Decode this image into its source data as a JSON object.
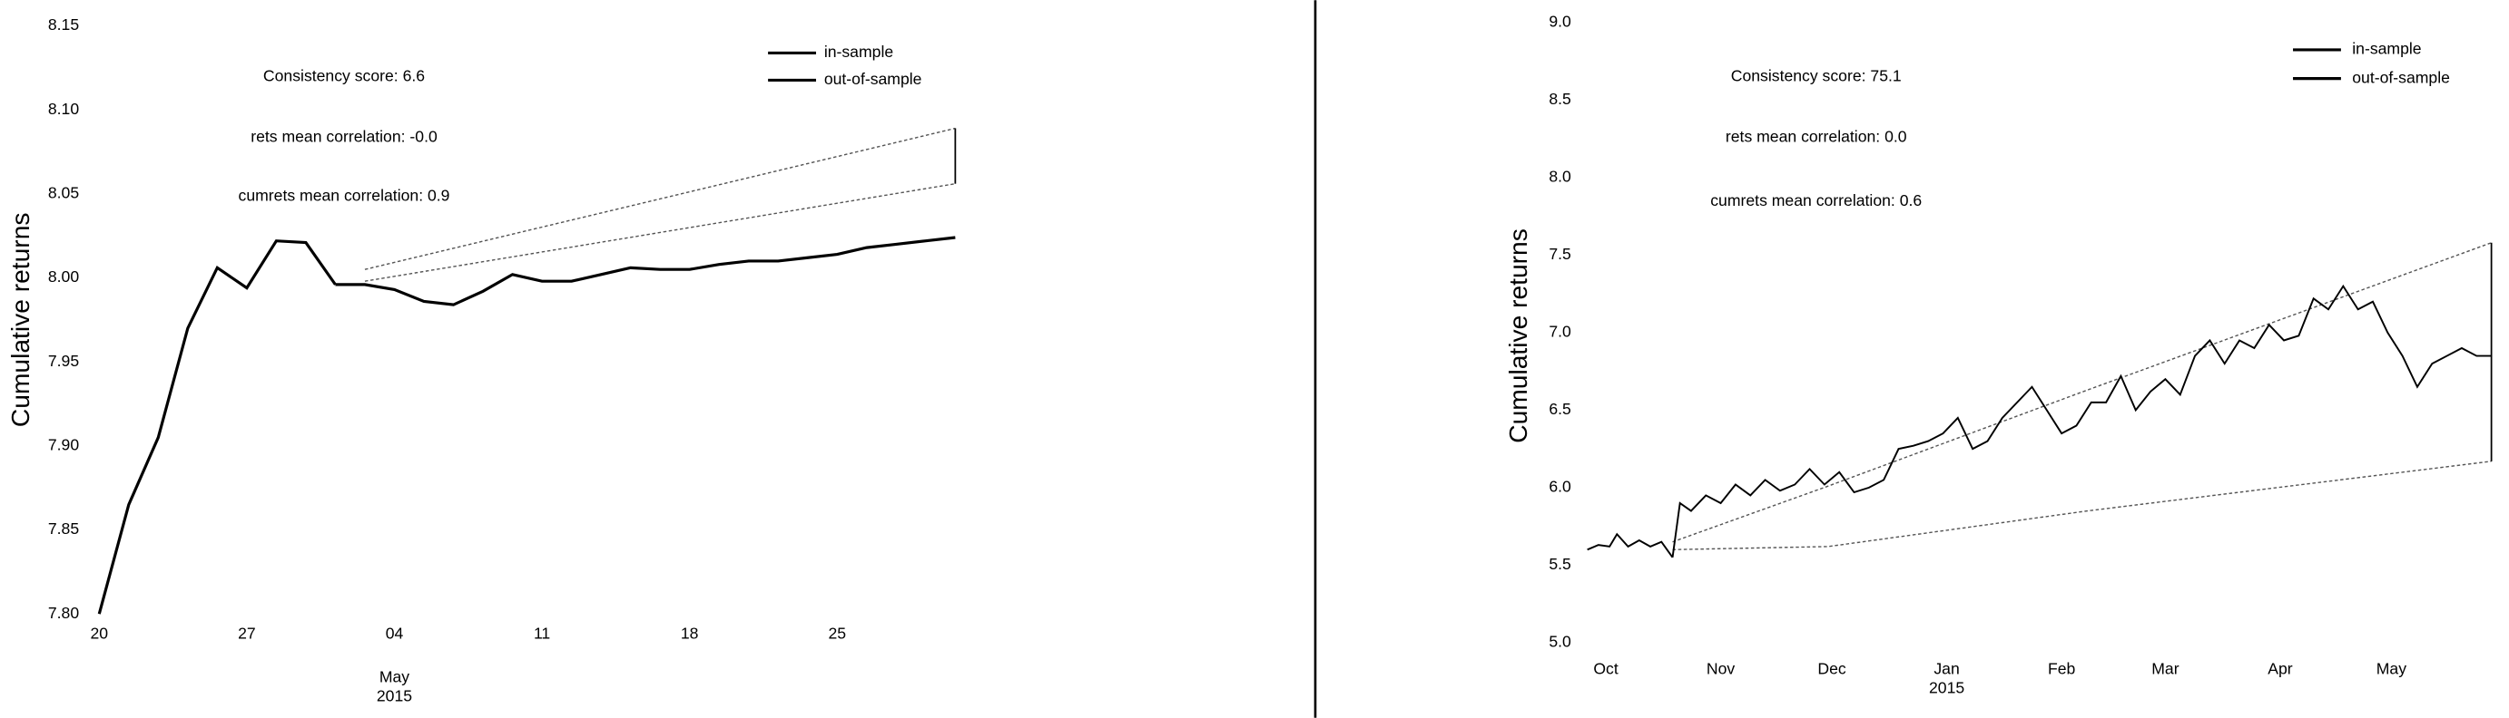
{
  "chart_data": [
    {
      "type": "line",
      "ylabel": "Cumulative returns",
      "annotations": [
        "Consistency score: 6.6",
        "rets mean correlation: -0.0",
        "cumrets mean correlation: 0.9"
      ],
      "series": [
        {
          "name": "in-sample",
          "color": "#000000",
          "x": [
            0,
            1,
            2,
            3,
            4,
            5,
            6,
            7,
            8
          ],
          "values": [
            7.8,
            7.865,
            7.905,
            7.97,
            8.006,
            7.994,
            8.022,
            8.021,
            7.996
          ]
        },
        {
          "name": "out-of-sample",
          "color": "#000000",
          "x": [
            8,
            9,
            10,
            11,
            12,
            13,
            14,
            15,
            16,
            17,
            18,
            19,
            20,
            21,
            22,
            23,
            24,
            25,
            26,
            27,
            28,
            29
          ],
          "values": [
            7.996,
            7.996,
            7.993,
            7.986,
            7.984,
            7.992,
            8.002,
            7.998,
            7.998,
            8.002,
            8.006,
            8.005,
            8.005,
            8.008,
            8.01,
            8.01,
            8.012,
            8.014,
            8.018,
            8.02,
            8.022,
            8.024
          ]
        }
      ],
      "cone": {
        "x": [
          9,
          29
        ],
        "upper": [
          8.005,
          8.089
        ],
        "lower": [
          7.998,
          8.056
        ]
      },
      "xlim": [
        0,
        29
      ],
      "ylim": [
        7.8,
        8.15
      ],
      "xticks": [
        {
          "value": 0,
          "label": "20"
        },
        {
          "value": 5,
          "label": "27"
        },
        {
          "value": 10,
          "label": "04"
        },
        {
          "value": 15,
          "label": "11"
        },
        {
          "value": 20,
          "label": "18"
        },
        {
          "value": 25,
          "label": "25"
        }
      ],
      "x_sublabels": [
        {
          "value": 10,
          "lines": [
            "May",
            "2015"
          ]
        }
      ],
      "yticks": [
        {
          "value": 7.8,
          "label": "7.80"
        },
        7.85,
        {
          "value": 7.9,
          "label": "7.90"
        },
        7.95,
        {
          "value": 8.0,
          "label": "8.00"
        },
        8.05,
        {
          "value": 8.1,
          "label": "8.10"
        },
        8.15
      ]
    },
    {
      "type": "line",
      "ylabel": "Cumulative returns",
      "annotations": [
        "Consistency score: 75.1",
        "rets mean correlation: 0.0",
        "cumrets mean correlation: 0.6"
      ],
      "series": [
        {
          "name": "in-sample",
          "color": "#000000",
          "x": [
            -5,
            -2,
            1,
            3,
            6,
            9,
            12,
            15,
            18
          ],
          "values": [
            5.6,
            5.63,
            5.62,
            5.7,
            5.62,
            5.66,
            5.62,
            5.65,
            5.55
          ]
        },
        {
          "name": "out-of-sample",
          "color": "#000000",
          "x": [
            18,
            20,
            23,
            27,
            31,
            35,
            39,
            43,
            47,
            51,
            55,
            59,
            63,
            67,
            71,
            75,
            79,
            83,
            87,
            91,
            95,
            99,
            103,
            107,
            111,
            115,
            119,
            123,
            127,
            131,
            135,
            139,
            143,
            147,
            151,
            155,
            159,
            163,
            167,
            171,
            175,
            179,
            183,
            187,
            191,
            195,
            199,
            203,
            207,
            211,
            215,
            219,
            223,
            227,
            231,
            235,
            239
          ],
          "values": [
            5.55,
            5.9,
            5.85,
            5.95,
            5.9,
            6.02,
            5.95,
            6.05,
            5.98,
            6.02,
            6.12,
            6.02,
            6.1,
            5.97,
            6.0,
            6.05,
            6.25,
            6.27,
            6.3,
            6.35,
            6.45,
            6.25,
            6.3,
            6.45,
            6.55,
            6.65,
            6.5,
            6.35,
            6.4,
            6.55,
            6.55,
            6.72,
            6.5,
            6.62,
            6.7,
            6.6,
            6.85,
            6.95,
            6.8,
            6.95,
            6.9,
            7.05,
            6.95,
            6.98,
            7.22,
            7.15,
            7.3,
            7.15,
            7.2,
            7.0,
            6.85,
            6.65,
            6.8,
            6.85,
            6.9,
            6.85,
            6.85
          ]
        }
      ],
      "cone": {
        "x": [
          18,
          60,
          130,
          239
        ],
        "upper": [
          5.65,
          6.01,
          6.63,
          7.58
        ],
        "lower": [
          5.6,
          5.62,
          5.85,
          6.17
        ]
      },
      "xlim": [
        -5,
        239
      ],
      "ylim": [
        5.0,
        9.0
      ],
      "xticks": [
        {
          "value": 0,
          "label": "Oct"
        },
        {
          "value": 31,
          "label": "Nov"
        },
        {
          "value": 61,
          "label": "Dec"
        },
        {
          "value": 92,
          "label": "Jan"
        },
        {
          "value": 123,
          "label": "Feb"
        },
        {
          "value": 151,
          "label": "Mar"
        },
        {
          "value": 182,
          "label": "Apr"
        },
        {
          "value": 212,
          "label": "May"
        }
      ],
      "x_sublabels": [
        {
          "value": 92,
          "lines": [
            "2015"
          ]
        }
      ],
      "yticks": [
        {
          "value": 5.0,
          "label": "5.0"
        },
        5.5,
        {
          "value": 6.0,
          "label": "6.0"
        },
        6.5,
        {
          "value": 7.0,
          "label": "7.0"
        },
        7.5,
        {
          "value": 8.0,
          "label": "8.0"
        },
        8.5,
        {
          "value": 9.0,
          "label": "9.0"
        }
      ]
    }
  ]
}
